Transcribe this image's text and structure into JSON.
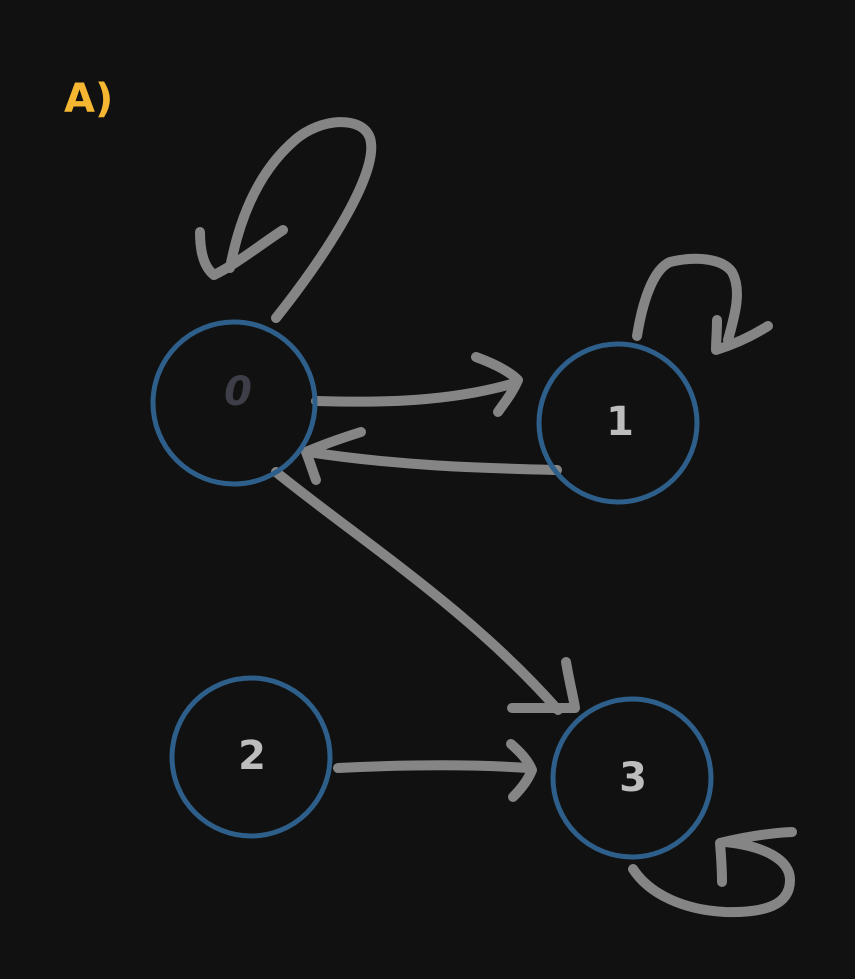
{
  "diagram": {
    "title": "A)",
    "colors": {
      "background": "#111111",
      "title": "#f5b731",
      "node_stroke": "#2e5f8a",
      "edge": "#8c8c8c",
      "label_dark": "#3e3e48",
      "label_light": "#bdbdbd"
    },
    "nodes": [
      {
        "id": "n0",
        "label": "0"
      },
      {
        "id": "n1",
        "label": "1"
      },
      {
        "id": "n2",
        "label": "2"
      },
      {
        "id": "n3",
        "label": "3"
      }
    ],
    "edges": [
      {
        "from": "0",
        "to": "0"
      },
      {
        "from": "0",
        "to": "1"
      },
      {
        "from": "1",
        "to": "0"
      },
      {
        "from": "1",
        "to": "1"
      },
      {
        "from": "0",
        "to": "3"
      },
      {
        "from": "2",
        "to": "3"
      },
      {
        "from": "3",
        "to": "3"
      }
    ]
  }
}
